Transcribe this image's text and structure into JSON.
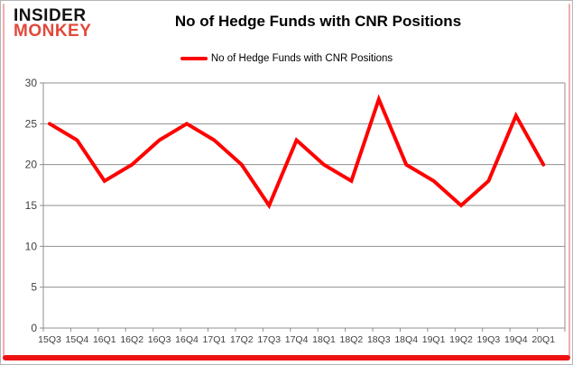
{
  "logo": {
    "line1": "INSIDER",
    "line2": "MONKEY"
  },
  "header": {
    "title": "No of Hedge Funds with CNR Positions"
  },
  "legend": {
    "label": "No of Hedge Funds with CNR Positions"
  },
  "colors": {
    "series": "#ff0000",
    "grid": "#8f8f8f",
    "axis_text": "#3f3f3f",
    "logo_accent": "#e2483a",
    "frame_accent": "#f2abab",
    "bottom_bar": "#ee1111"
  },
  "chart_data": {
    "type": "line",
    "title": "No of Hedge Funds with CNR Positions",
    "series_name": "No of Hedge Funds with CNR Positions",
    "categories": [
      "15Q3",
      "15Q4",
      "16Q1",
      "16Q2",
      "16Q3",
      "16Q4",
      "17Q1",
      "17Q2",
      "17Q3",
      "17Q4",
      "18Q1",
      "18Q2",
      "18Q3",
      "18Q4",
      "19Q1",
      "19Q2",
      "19Q3",
      "19Q4",
      "20Q1"
    ],
    "values": [
      25,
      23,
      18,
      20,
      23,
      25,
      23,
      20,
      15,
      23,
      20,
      18,
      28,
      20,
      18,
      15,
      18,
      26,
      20
    ],
    "ylim": [
      0,
      30
    ],
    "ytick_step": 5,
    "yticks": [
      0,
      5,
      10,
      15,
      20,
      25,
      30
    ],
    "grid": true,
    "legend_position": "top"
  }
}
